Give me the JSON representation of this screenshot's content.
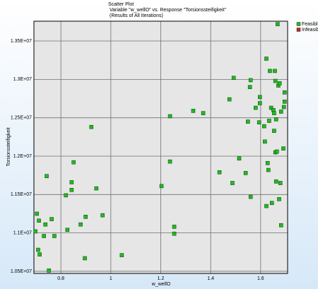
{
  "chart_data": {
    "type": "scatter",
    "title": "Scatter Plot",
    "subtitle": "Variable \"w_wellO\" vs. Response \"Torsionssteifigkeit\"",
    "subtitle2": "(Results of All Iterations)",
    "x_label": "w_wellO",
    "y_label": "Torsionssteifigkeit",
    "xlim": [
      0.692,
      1.708
    ],
    "ylim": [
      10472000,
      13758000
    ],
    "xticks": [
      0.8,
      1,
      1.2,
      1.4,
      1.6
    ],
    "yticks": [
      {
        "value": 10500000,
        "label": "1.05E+07"
      },
      {
        "value": 11000000,
        "label": "1.1E+07"
      },
      {
        "value": 11500000,
        "label": "1.15E+07"
      },
      {
        "value": 12000000,
        "label": "1.2E+07"
      },
      {
        "value": 12500000,
        "label": "1.25E+07"
      },
      {
        "value": 13000000,
        "label": "1.3E+07"
      },
      {
        "value": 13500000,
        "label": "1.35E+07"
      }
    ],
    "grid": true,
    "legend": "top-right",
    "series": [
      {
        "name": "Feasible",
        "color": "#22bb22",
        "x": [
          0.704,
          0.712,
          0.698,
          0.709,
          0.715,
          0.738,
          0.732,
          0.743,
          0.752,
          0.763,
          0.774,
          0.82,
          0.826,
          0.843,
          0.843,
          0.851,
          0.879,
          0.899,
          0.896,
          0.922,
          0.942,
          0.967,
          1.044,
          1.203,
          1.237,
          1.237,
          1.254,
          1.254,
          1.33,
          1.37,
          1.435,
          1.475,
          1.487,
          1.492,
          1.514,
          1.54,
          1.549,
          1.557,
          1.56,
          1.56,
          1.58,
          1.594,
          1.597,
          1.597,
          1.614,
          1.617,
          1.623,
          1.623,
          1.628,
          1.631,
          1.634,
          1.637,
          1.642,
          1.645,
          1.651,
          1.654,
          1.654,
          1.657,
          1.659,
          1.659,
          1.662,
          1.662,
          1.665,
          1.668,
          1.671,
          1.674,
          1.676,
          1.679,
          1.682,
          1.682,
          1.691,
          1.693,
          1.696,
          1.696
        ],
        "values": [
          11250000,
          11160000,
          11020000,
          10780000,
          10720000,
          11110000,
          10960000,
          11740000,
          10510000,
          11180000,
          10960000,
          11490000,
          11040000,
          11660000,
          11560000,
          11920000,
          11110000,
          11210000,
          10670000,
          12380000,
          11580000,
          11230000,
          10710000,
          11610000,
          12520000,
          11930000,
          11080000,
          10990000,
          12590000,
          12560000,
          11790000,
          12740000,
          11650000,
          13020000,
          11970000,
          11780000,
          12450000,
          12900000,
          12990000,
          11470000,
          12630000,
          12440000,
          12690000,
          12770000,
          12390000,
          12190000,
          13270000,
          11350000,
          11910000,
          11820000,
          12460000,
          13110000,
          12630000,
          11390000,
          12600000,
          12560000,
          12330000,
          13110000,
          12980000,
          12050000,
          12480000,
          11670000,
          12060000,
          13720000,
          12920000,
          11440000,
          12950000,
          11650000,
          12580000,
          11100000,
          12100000,
          12640000,
          12830000,
          12710000
        ]
      },
      {
        "name": "Infeasible",
        "color": "#cc2222",
        "x": [],
        "values": []
      }
    ]
  }
}
